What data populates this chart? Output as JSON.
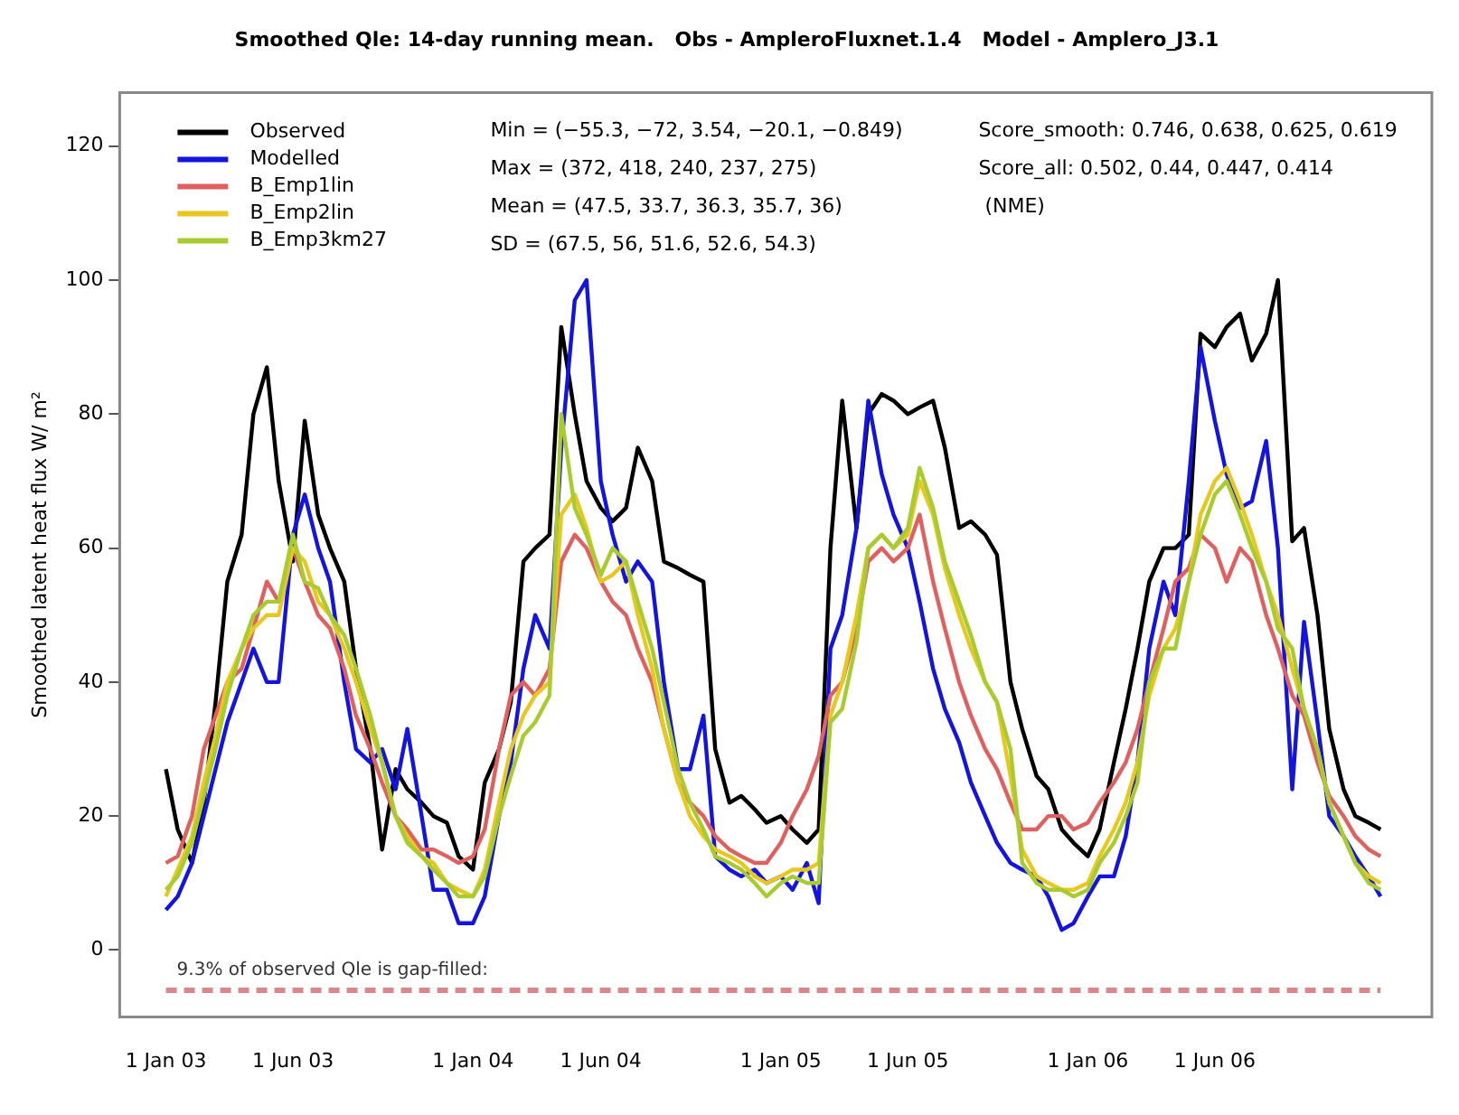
{
  "chart_data": {
    "type": "line",
    "title": "Smoothed Qle: 14-day running mean.   Obs - AmpleroFluxnet.1.4   Model - Amplero_J3.1",
    "ylabel": "Smoothed latent heat flux W/ m²",
    "x": [
      "2003-01-01",
      "2003-01-15",
      "2003-02-01",
      "2003-02-15",
      "2003-03-01",
      "2003-03-15",
      "2003-04-01",
      "2003-04-15",
      "2003-05-01",
      "2003-05-15",
      "2003-06-01",
      "2003-06-15",
      "2003-07-01",
      "2003-07-15",
      "2003-08-01",
      "2003-08-15",
      "2003-09-01",
      "2003-09-15",
      "2003-10-01",
      "2003-10-15",
      "2003-11-01",
      "2003-11-15",
      "2003-12-01",
      "2003-12-15",
      "2004-01-01",
      "2004-01-15",
      "2004-02-01",
      "2004-02-15",
      "2004-03-01",
      "2004-03-15",
      "2004-04-01",
      "2004-04-15",
      "2004-05-01",
      "2004-05-15",
      "2004-06-01",
      "2004-06-15",
      "2004-07-01",
      "2004-07-15",
      "2004-08-01",
      "2004-08-15",
      "2004-09-01",
      "2004-09-15",
      "2004-10-01",
      "2004-10-15",
      "2004-11-01",
      "2004-11-15",
      "2004-12-01",
      "2004-12-15",
      "2005-01-01",
      "2005-01-15",
      "2005-02-01",
      "2005-02-15",
      "2005-03-01",
      "2005-03-15",
      "2005-04-01",
      "2005-04-15",
      "2005-05-01",
      "2005-05-15",
      "2005-06-01",
      "2005-06-15",
      "2005-07-01",
      "2005-07-15",
      "2005-08-01",
      "2005-08-15",
      "2005-09-01",
      "2005-09-15",
      "2005-10-01",
      "2005-10-15",
      "2005-11-01",
      "2005-11-15",
      "2005-12-01",
      "2005-12-15",
      "2006-01-01",
      "2006-01-15",
      "2006-02-01",
      "2006-02-15",
      "2006-03-01",
      "2006-03-15",
      "2006-04-01",
      "2006-04-15",
      "2006-05-01",
      "2006-05-15",
      "2006-06-01",
      "2006-06-15",
      "2006-07-01",
      "2006-07-15",
      "2006-08-01",
      "2006-08-15",
      "2006-09-01",
      "2006-09-15",
      "2006-10-01",
      "2006-10-15",
      "2006-11-01",
      "2006-11-15",
      "2006-12-01",
      "2006-12-15"
    ],
    "series": [
      {
        "name": "Observed",
        "color": "#000000",
        "values": [
          27,
          18,
          13,
          22,
          37,
          55,
          62,
          80,
          87,
          70,
          58,
          79,
          65,
          60,
          55,
          42,
          30,
          15,
          27,
          24,
          22,
          20,
          19,
          14,
          12,
          25,
          30,
          37,
          58,
          60,
          62,
          93,
          80,
          70,
          66,
          64,
          66,
          75,
          70,
          58,
          57,
          56,
          55,
          30,
          22,
          23,
          21,
          19,
          20,
          18,
          16,
          18,
          60,
          82,
          63,
          80,
          83,
          82,
          80,
          81,
          82,
          75,
          63,
          64,
          62,
          59,
          40,
          33,
          26,
          24,
          18,
          16,
          14,
          18,
          28,
          36,
          45,
          55,
          60,
          60,
          62,
          92,
          90,
          93,
          95,
          88,
          92,
          100,
          61,
          63,
          50,
          33,
          24,
          20,
          19,
          18
        ]
      },
      {
        "name": "Modelled",
        "color": "#1414e0",
        "values": [
          6,
          8,
          13,
          20,
          27,
          34,
          40,
          45,
          40,
          40,
          62,
          68,
          60,
          55,
          40,
          30,
          28,
          30,
          24,
          33,
          20,
          9,
          9,
          4,
          4,
          8,
          20,
          28,
          42,
          50,
          45,
          75,
          97,
          100,
          70,
          62,
          55,
          58,
          55,
          40,
          27,
          27,
          35,
          14,
          12,
          11,
          12,
          10,
          11,
          9,
          13,
          7,
          45,
          50,
          63,
          82,
          71,
          65,
          60,
          52,
          42,
          36,
          31,
          25,
          20,
          16,
          13,
          12,
          11,
          8,
          3,
          4,
          8,
          11,
          11,
          17,
          28,
          45,
          55,
          50,
          70,
          90,
          79,
          71,
          66,
          67,
          76,
          60,
          24,
          49,
          34,
          20,
          17,
          14,
          11,
          8
        ]
      },
      {
        "name": "B_Emp1lin",
        "color": "#e06060",
        "values": [
          13,
          14,
          20,
          30,
          35,
          40,
          42,
          48,
          55,
          52,
          60,
          55,
          50,
          48,
          42,
          35,
          30,
          25,
          20,
          18,
          15,
          15,
          14,
          13,
          14,
          18,
          30,
          38,
          40,
          38,
          42,
          58,
          62,
          60,
          55,
          52,
          50,
          45,
          40,
          33,
          25,
          22,
          20,
          17,
          15,
          14,
          13,
          13,
          16,
          20,
          24,
          29,
          38,
          40,
          48,
          58,
          60,
          58,
          60,
          65,
          55,
          48,
          40,
          35,
          30,
          27,
          22,
          18,
          18,
          20,
          20,
          18,
          19,
          22,
          25,
          28,
          33,
          40,
          48,
          55,
          57,
          62,
          60,
          55,
          60,
          58,
          50,
          45,
          38,
          35,
          28,
          23,
          20,
          17,
          15,
          14
        ]
      },
      {
        "name": "B_Emp2lin",
        "color": "#e8c820",
        "values": [
          8,
          12,
          17,
          25,
          32,
          40,
          45,
          48,
          50,
          50,
          60,
          58,
          52,
          50,
          45,
          40,
          33,
          28,
          20,
          17,
          14,
          13,
          10,
          9,
          8,
          12,
          22,
          30,
          35,
          38,
          40,
          65,
          68,
          63,
          55,
          56,
          58,
          50,
          42,
          33,
          25,
          20,
          17,
          15,
          14,
          13,
          11,
          10,
          11,
          12,
          12,
          13,
          35,
          40,
          50,
          60,
          62,
          60,
          62,
          70,
          65,
          57,
          50,
          45,
          40,
          37,
          26,
          15,
          11,
          10,
          9,
          9,
          10,
          14,
          18,
          22,
          28,
          38,
          45,
          48,
          55,
          65,
          70,
          72,
          67,
          62,
          55,
          50,
          42,
          36,
          30,
          22,
          17,
          13,
          11,
          10
        ]
      },
      {
        "name": "B_Emp3km27",
        "color": "#a8cc30",
        "values": [
          9,
          11,
          16,
          23,
          30,
          38,
          45,
          50,
          52,
          52,
          62,
          55,
          54,
          50,
          47,
          42,
          35,
          28,
          20,
          16,
          14,
          12,
          10,
          8,
          8,
          11,
          20,
          26,
          32,
          34,
          38,
          80,
          66,
          62,
          56,
          60,
          58,
          52,
          45,
          37,
          27,
          22,
          18,
          14,
          13,
          12,
          10,
          8,
          10,
          11,
          10,
          10,
          34,
          36,
          46,
          60,
          62,
          60,
          63,
          72,
          66,
          58,
          52,
          47,
          40,
          37,
          30,
          13,
          10,
          9,
          9,
          8,
          9,
          13,
          16,
          20,
          25,
          40,
          45,
          45,
          55,
          62,
          68,
          70,
          65,
          60,
          55,
          48,
          45,
          36,
          30,
          22,
          17,
          13,
          10,
          9
        ]
      }
    ],
    "xlim": [
      "2002-11-07",
      "2007-02-14"
    ],
    "xticks": [
      {
        "value": "2003-01-01",
        "label": "1 Jan 03"
      },
      {
        "value": "2003-06-01",
        "label": "1 Jun 03"
      },
      {
        "value": "2004-01-01",
        "label": "1 Jan 04"
      },
      {
        "value": "2004-06-01",
        "label": "1 Jun 04"
      },
      {
        "value": "2005-01-01",
        "label": "1 Jan 05"
      },
      {
        "value": "2005-06-01",
        "label": "1 Jun 05"
      },
      {
        "value": "2006-01-01",
        "label": "1 Jan 06"
      },
      {
        "value": "2006-06-01",
        "label": "1 Jun 06"
      }
    ],
    "ylim": [
      -10,
      128
    ],
    "yticks": [
      0,
      20,
      40,
      60,
      80,
      100,
      120
    ],
    "ref_lines": [
      {
        "axis": "y",
        "value": -6,
        "label": "9.3% of observed Qle is gap-filled:",
        "color": "#d88888",
        "line_style": "dashed"
      }
    ],
    "annotations": [
      "Min = (−55.3, −72, 3.54, −20.1, −0.849)",
      "Max = (372, 418, 240, 237, 275)",
      "Mean = (47.5, 33.7, 36.3, 35.7, 36)",
      "SD = (67.5, 56, 51.6, 52.6, 54.3)",
      "Score_smooth: 0.746, 0.638, 0.625, 0.619",
      "Score_all: 0.502, 0.44, 0.447, 0.414",
      " (NME)"
    ],
    "legend": "top left",
    "grid": false,
    "marker": "none",
    "line_style": "solid"
  }
}
